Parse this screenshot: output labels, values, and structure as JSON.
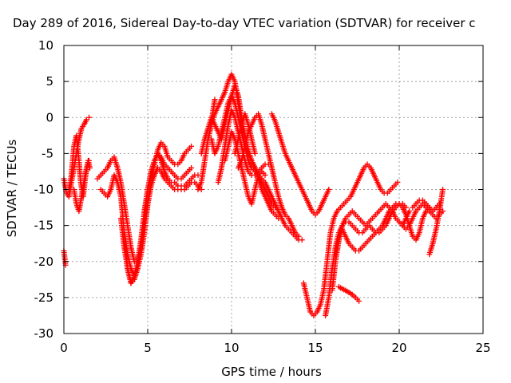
{
  "chart_data": {
    "type": "scatter",
    "title": "Day 289 of 2016, Sidereal Day-to-day VTEC variation (SDTVAR) for receiver c",
    "xlabel": "GPS time / hours",
    "ylabel": "SDTVAR / TECUs",
    "xlim": [
      0,
      25
    ],
    "ylim": [
      -30,
      10
    ],
    "x_ticks": [
      0,
      5,
      10,
      15,
      20,
      25
    ],
    "y_ticks": [
      -30,
      -25,
      -20,
      -15,
      -10,
      -5,
      0,
      5,
      10
    ],
    "x_tick_labels": [
      "0",
      "5",
      "10",
      "15",
      "20",
      "25"
    ],
    "y_tick_labels": [
      "-30",
      "-25",
      "-20",
      "-15",
      "-10",
      "-5",
      "0",
      "5",
      "10"
    ],
    "grid": true,
    "marker": "plus",
    "color": "#ff0000",
    "series": [
      {
        "x": [
          0.0,
          0.15,
          0.3,
          0.45,
          0.6,
          0.75,
          0.9,
          1.05,
          1.2,
          1.35,
          1.5
        ],
        "y": [
          -8.5,
          -10.5,
          -11.0,
          -9.0,
          -7.0,
          -5.0,
          -3.0,
          -1.5,
          -1.0,
          -0.3,
          0.0
        ]
      },
      {
        "x": [
          0.0,
          0.1
        ],
        "y": [
          -18.5,
          -20.5
        ]
      },
      {
        "x": [
          0.3,
          0.45,
          0.6,
          0.75,
          0.9,
          1.0,
          1.15,
          1.3,
          1.45,
          1.55
        ],
        "y": [
          -10.0,
          -8.0,
          -4.0,
          -2.5,
          -6.0,
          -9.0,
          -11.0,
          -8.0,
          -6.0,
          -7.0
        ]
      },
      {
        "x": [
          0.6,
          0.75,
          0.9,
          1.05,
          1.2,
          1.35,
          1.5
        ],
        "y": [
          -10.0,
          -12.0,
          -13.0,
          -11.0,
          -9.0,
          -7.0,
          -6.0
        ]
      },
      {
        "x": [
          2.0,
          2.2,
          2.4,
          2.6,
          2.8,
          3.0,
          3.2,
          3.4,
          3.6,
          3.8,
          4.0,
          4.2,
          4.4,
          4.6,
          4.8,
          5.0,
          5.2,
          5.4,
          5.6,
          5.8,
          6.0,
          6.2,
          6.4,
          6.6,
          6.8,
          7.0,
          7.2,
          7.4,
          7.6
        ],
        "y": [
          -8.5,
          -8.0,
          -7.5,
          -7.0,
          -6.0,
          -5.5,
          -7.0,
          -9.0,
          -12.0,
          -15.0,
          -18.0,
          -20.0,
          -19.5,
          -18.0,
          -15.0,
          -12.0,
          -9.0,
          -6.5,
          -4.5,
          -3.5,
          -4.0,
          -5.5,
          -6.0,
          -6.5,
          -6.5,
          -6.0,
          -5.0,
          -4.5,
          -4.0
        ]
      },
      {
        "x": [
          2.2,
          2.4,
          2.6,
          2.8,
          3.0,
          3.2,
          3.4,
          3.6,
          3.8,
          4.0,
          4.2,
          4.4,
          4.6,
          4.8,
          5.0,
          5.2,
          5.4,
          5.6,
          5.8,
          6.0,
          6.2,
          6.4,
          6.6,
          6.8,
          7.0,
          7.2,
          7.4,
          7.6
        ],
        "y": [
          -10.0,
          -10.5,
          -11.0,
          -10.0,
          -8.0,
          -9.0,
          -11.0,
          -16.0,
          -21.0,
          -23.0,
          -22.0,
          -20.0,
          -17.0,
          -13.0,
          -10.0,
          -8.0,
          -6.0,
          -5.0,
          -5.5,
          -6.5,
          -7.0,
          -7.5,
          -8.0,
          -8.5,
          -8.5,
          -8.0,
          -7.5,
          -7.0
        ]
      },
      {
        "x": [
          3.6,
          3.8,
          4.0,
          4.2,
          4.4,
          4.6,
          4.8,
          5.0,
          5.2,
          5.4,
          5.6,
          5.8,
          6.0,
          6.2,
          6.4,
          6.6,
          6.8,
          7.0,
          7.2,
          7.4,
          7.6,
          7.8,
          8.0,
          8.2
        ],
        "y": [
          -16.0,
          -19.0,
          -21.0,
          -22.0,
          -21.0,
          -19.0,
          -16.0,
          -12.0,
          -9.5,
          -8.0,
          -7.0,
          -7.5,
          -8.5,
          -9.0,
          -9.5,
          -10.0,
          -10.0,
          -10.0,
          -10.0,
          -9.5,
          -9.0,
          -9.0,
          -9.5,
          -10.0
        ]
      },
      {
        "x": [
          3.4,
          3.6,
          3.8,
          4.0,
          4.2,
          4.4,
          4.6,
          4.8,
          5.0,
          5.2,
          5.4,
          5.6,
          5.8,
          6.0,
          6.2,
          6.4,
          6.6,
          6.8,
          7.0,
          7.2,
          7.4,
          7.6,
          7.8,
          8.0
        ],
        "y": [
          -14.0,
          -18.0,
          -21.0,
          -23.0,
          -22.5,
          -21.0,
          -18.0,
          -14.0,
          -10.0,
          -7.5,
          -6.0,
          -5.0,
          -6.0,
          -7.5,
          -8.5,
          -9.0,
          -9.0,
          -9.5,
          -9.5,
          -9.5,
          -9.0,
          -8.5,
          -8.0,
          -8.0
        ]
      },
      {
        "x": [
          8.0,
          8.2,
          8.4,
          8.6,
          8.8,
          9.0,
          9.2,
          9.4,
          9.6,
          9.8,
          10.0,
          10.2,
          10.4,
          10.6,
          10.8,
          11.0,
          11.2,
          11.4,
          11.6,
          11.8,
          12.0,
          12.2,
          12.4,
          12.6,
          12.8,
          13.0,
          13.2,
          13.4,
          13.6,
          13.8,
          14.0,
          14.2
        ],
        "y": [
          -10.0,
          -9.0,
          -6.0,
          -3.0,
          -1.0,
          0.5,
          1.5,
          2.5,
          3.5,
          5.0,
          6.0,
          5.0,
          2.0,
          -1.0,
          -4.0,
          -6.0,
          -7.0,
          -7.5,
          -8.0,
          -8.5,
          -9.0,
          -10.0,
          -11.0,
          -12.0,
          -13.0,
          -14.0,
          -15.0,
          -15.5,
          -16.0,
          -16.5,
          -17.0,
          -17.0
        ]
      },
      {
        "x": [
          8.2,
          8.4,
          8.6,
          8.8,
          9.0,
          9.2,
          9.4,
          9.6,
          9.8,
          10.0,
          10.2,
          10.4,
          10.6,
          10.8,
          11.0,
          11.2,
          11.4,
          11.6,
          11.8,
          12.0,
          12.2,
          12.4,
          12.6
        ],
        "y": [
          -5.0,
          -3.0,
          -1.5,
          0.0,
          -1.0,
          -2.0,
          -3.0,
          -1.0,
          1.0,
          3.0,
          4.5,
          3.0,
          0.0,
          -2.5,
          -4.5,
          -6.0,
          -7.0,
          -8.0,
          -9.0,
          -10.0,
          -11.0,
          -12.0,
          -12.5
        ]
      },
      {
        "x": [
          8.8,
          9.0,
          9.2,
          9.4,
          9.6,
          9.8,
          10.0,
          10.2,
          10.4,
          10.6,
          10.8,
          11.0,
          11.2,
          11.4,
          11.6,
          11.8,
          12.0,
          12.2,
          12.4,
          12.6,
          12.8
        ],
        "y": [
          -3.0,
          -5.0,
          -4.0,
          -2.0,
          0.0,
          2.0,
          3.0,
          2.0,
          0.0,
          -2.0,
          -4.0,
          -5.0,
          -6.0,
          -7.0,
          -8.5,
          -10.0,
          -11.0,
          -12.0,
          -13.0,
          -13.5,
          -14.0
        ]
      },
      {
        "x": [
          9.2,
          9.4,
          9.6,
          9.8,
          10.0,
          10.2,
          10.4,
          10.6,
          10.8,
          11.0,
          11.2,
          11.4,
          11.6,
          11.8,
          12.0,
          12.2
        ],
        "y": [
          -9.0,
          -7.0,
          -4.0,
          -1.0,
          1.0,
          0.0,
          -2.0,
          -4.0,
          -6.0,
          -7.5,
          -8.0,
          -8.0,
          -7.5,
          -7.0,
          -6.5,
          -6.5
        ]
      },
      {
        "x": [
          9.6,
          9.8,
          10.0,
          10.2,
          10.4,
          10.6,
          10.8,
          11.0,
          11.2,
          11.4,
          11.6,
          11.8,
          12.0
        ],
        "y": [
          -6.0,
          -4.0,
          -2.0,
          -3.0,
          -5.0,
          -7.0,
          -9.0,
          -11.0,
          -12.0,
          -10.0,
          -8.0,
          -7.5,
          -8.0
        ]
      },
      {
        "x": [
          8.8,
          8.9,
          9.0
        ],
        "y": [
          -0.5,
          1.0,
          2.5
        ]
      },
      {
        "x": [
          10.2,
          10.4,
          10.6,
          10.8,
          11.0,
          11.2,
          11.4
        ],
        "y": [
          -5.0,
          -3.0,
          -1.0,
          0.5,
          -1.0,
          -3.0,
          -5.0
        ]
      },
      {
        "x": [
          10.4,
          10.6,
          10.8,
          11.0,
          11.2,
          11.4,
          11.6,
          11.8,
          12.0,
          12.2,
          12.4,
          12.6,
          12.8,
          13.0,
          13.2,
          13.4,
          13.6,
          13.8,
          14.0
        ],
        "y": [
          -7.0,
          -6.0,
          -4.0,
          -2.0,
          -1.0,
          0.0,
          0.5,
          -1.0,
          -3.0,
          -5.0,
          -7.0,
          -9.0,
          -11.0,
          -12.5,
          -13.5,
          -14.0,
          -15.0,
          -16.0,
          -16.5
        ]
      },
      {
        "x": [
          12.4,
          12.6,
          12.8,
          13.0,
          13.2,
          13.4,
          13.6,
          13.8,
          14.0,
          14.2,
          14.4,
          14.6,
          14.8,
          15.0,
          15.2,
          15.4,
          15.6,
          15.8
        ],
        "y": [
          0.5,
          -0.5,
          -2.0,
          -3.5,
          -5.0,
          -6.0,
          -7.0,
          -8.0,
          -9.0,
          -10.0,
          -11.0,
          -12.0,
          -13.0,
          -13.5,
          -13.0,
          -12.0,
          -11.0,
          -10.0
        ]
      },
      {
        "x": [
          14.3,
          14.5,
          14.7,
          14.9,
          15.1,
          15.3,
          15.5,
          15.7,
          15.9,
          16.1,
          16.3,
          16.5,
          16.7,
          16.9,
          17.1,
          17.3,
          17.5,
          17.7,
          17.9,
          18.1,
          18.3,
          18.5,
          18.7,
          18.9,
          19.1,
          19.3,
          19.5,
          19.7,
          19.9
        ],
        "y": [
          -23.0,
          -25.0,
          -27.0,
          -27.5,
          -27.0,
          -26.0,
          -24.0,
          -20.0,
          -16.0,
          -14.0,
          -13.0,
          -12.5,
          -12.0,
          -11.5,
          -11.0,
          -10.0,
          -9.0,
          -8.0,
          -7.0,
          -6.5,
          -7.0,
          -8.0,
          -9.0,
          -10.0,
          -10.5,
          -10.5,
          -10.0,
          -9.5,
          -9.0
        ]
      },
      {
        "x": [
          15.6,
          15.8,
          16.0,
          16.2,
          16.4,
          16.6,
          16.8,
          17.0,
          17.2,
          17.4,
          17.6,
          17.8,
          18.0,
          18.2,
          18.4,
          18.6,
          18.8,
          19.0,
          19.2,
          19.4,
          19.6,
          19.8,
          20.0,
          20.2,
          20.4,
          20.6
        ],
        "y": [
          -27.5,
          -25.0,
          -21.0,
          -18.0,
          -16.0,
          -15.0,
          -14.0,
          -13.5,
          -13.0,
          -13.5,
          -14.0,
          -14.5,
          -15.0,
          -14.5,
          -14.0,
          -13.5,
          -13.0,
          -12.5,
          -12.0,
          -12.5,
          -13.0,
          -14.0,
          -14.5,
          -15.0,
          -14.0,
          -13.0
        ]
      },
      {
        "x": [
          16.0,
          16.2,
          16.4,
          16.6,
          16.8,
          17.0,
          17.2,
          17.4,
          17.6,
          17.8,
          18.0,
          18.2,
          18.4,
          18.6,
          18.8,
          19.0,
          19.2,
          19.4,
          19.6,
          19.8,
          20.0,
          20.2,
          20.4,
          20.6,
          20.8,
          21.0,
          21.2,
          21.4,
          21.6,
          21.8
        ],
        "y": [
          -24.0,
          -20.0,
          -17.0,
          -15.0,
          -14.5,
          -14.5,
          -15.0,
          -15.5,
          -16.0,
          -16.0,
          -15.5,
          -15.0,
          -15.5,
          -16.0,
          -16.0,
          -15.5,
          -15.0,
          -14.0,
          -13.0,
          -12.5,
          -12.0,
          -12.5,
          -13.5,
          -15.0,
          -16.5,
          -17.0,
          -16.0,
          -14.0,
          -13.0,
          -12.5
        ]
      },
      {
        "x": [
          16.2,
          16.4,
          16.6,
          16.8,
          17.0,
          17.2,
          17.4,
          17.6,
          17.8,
          18.0,
          18.2,
          18.4,
          18.6,
          18.8,
          19.0,
          19.2,
          19.4,
          19.6,
          19.8,
          20.0,
          20.2,
          20.4
        ],
        "y": [
          -19.0,
          -17.0,
          -15.5,
          -16.5,
          -17.5,
          -18.0,
          -18.5,
          -18.5,
          -18.0,
          -17.5,
          -17.0,
          -16.5,
          -16.0,
          -15.5,
          -15.0,
          -14.0,
          -13.0,
          -12.5,
          -12.0,
          -12.0,
          -12.0,
          -12.5
        ]
      },
      {
        "x": [
          16.4,
          16.6,
          16.8,
          17.0,
          17.2,
          17.4,
          17.6
        ],
        "y": [
          -23.5,
          -23.8,
          -24.0,
          -24.3,
          -24.6,
          -25.0,
          -25.5
        ]
      },
      {
        "x": [
          20.0,
          20.2,
          20.4,
          20.6,
          20.8,
          21.0,
          21.2,
          21.4,
          21.6,
          21.8,
          22.0,
          22.2,
          22.4,
          22.6
        ],
        "y": [
          -14.5,
          -15.0,
          -15.5,
          -15.0,
          -14.0,
          -13.0,
          -12.5,
          -12.0,
          -12.5,
          -13.0,
          -13.5,
          -14.0,
          -13.5,
          -13.0
        ]
      },
      {
        "x": [
          21.8,
          22.0,
          22.2,
          22.4,
          22.6
        ],
        "y": [
          -19.0,
          -17.5,
          -15.5,
          -13.0,
          -10.0
        ]
      },
      {
        "x": [
          20.8,
          21.0,
          21.2,
          21.4,
          21.6,
          21.8,
          22.0,
          22.2,
          22.4
        ],
        "y": [
          -12.5,
          -12.0,
          -11.5,
          -11.5,
          -12.0,
          -12.5,
          -13.0,
          -12.5,
          -12.0
        ]
      }
    ]
  }
}
